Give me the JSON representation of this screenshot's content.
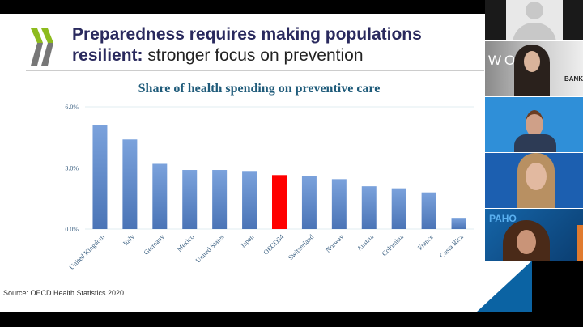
{
  "slide": {
    "title_bold": "Preparedness requires making populations",
    "title_bold2": "resilient:",
    "title_rest": " stronger focus on prevention",
    "source": "Source: OECD Health Statistics 2020",
    "logo": "oecd-chevrons-logo"
  },
  "chart_data": {
    "type": "bar",
    "title": "Share of health spending on preventive care",
    "categories": [
      "United Kingdom",
      "Italy",
      "Germany",
      "Mexico",
      "United States",
      "Japan",
      "OECD34",
      "Switzerland",
      "Norway",
      "Austria",
      "Colombia",
      "France",
      "Costa Rica"
    ],
    "values": [
      5.1,
      4.4,
      3.2,
      2.9,
      2.9,
      2.85,
      2.65,
      2.6,
      2.45,
      2.1,
      2.0,
      1.8,
      0.55
    ],
    "highlight": "OECD34",
    "yticks": [
      "0.0%",
      "3.0%",
      "6.0%"
    ],
    "ylim": [
      0,
      6
    ],
    "grid": true,
    "colors": {
      "bar": "#5b86c8",
      "highlight": "#ff0000"
    }
  },
  "participants": {
    "tile1": {
      "type": "avatar-placeholder"
    },
    "tile2": {
      "logo_text": "WOR",
      "logo_text2": "BANK"
    },
    "tile3": {
      "bg": "#2f8fd8"
    },
    "tile4": {
      "bg": "#1c5fb0"
    },
    "tile5": {
      "org": "PAHO"
    }
  }
}
